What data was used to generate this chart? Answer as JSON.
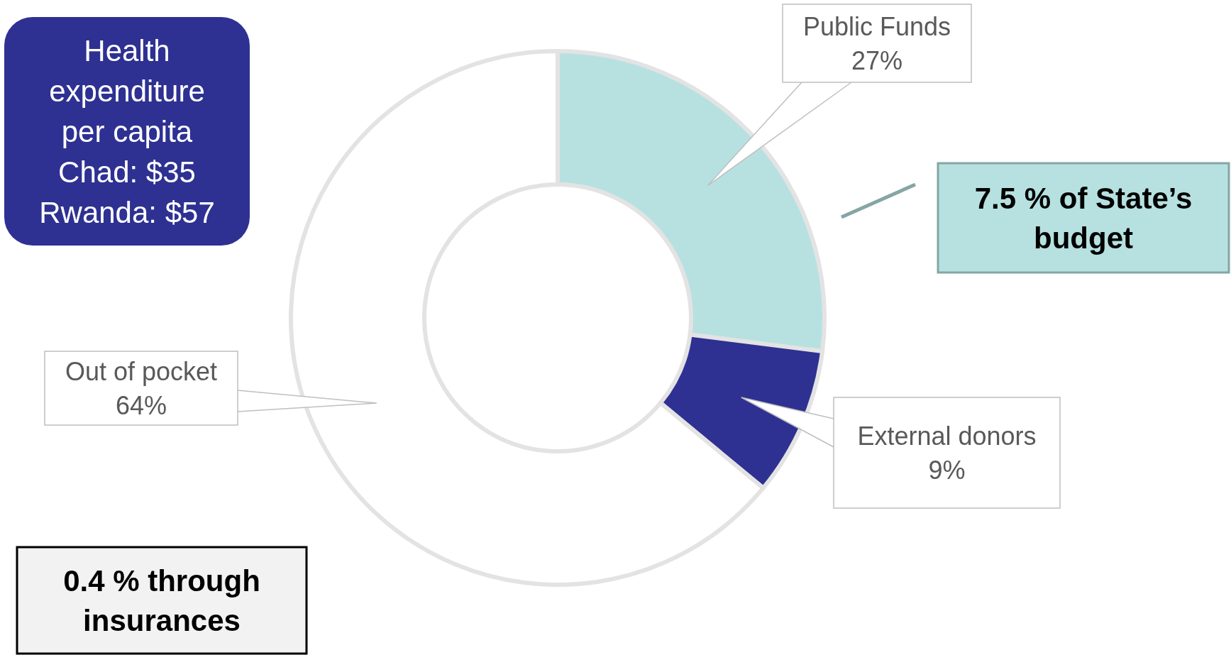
{
  "chart_data": {
    "type": "donut",
    "categories": [
      "Public Funds",
      "External donors",
      "Out of pocket"
    ],
    "values": [
      27,
      9,
      64
    ],
    "colors": [
      "#b7e1e1",
      "#2e3192",
      "#ffffff"
    ],
    "value_labels": [
      "27%",
      "9%",
      "64%"
    ],
    "annotations": [
      "Health expenditure per capita Chad: $35 Rwanda: $57",
      "7.5 % of State’s budget",
      "0.4 % through insurances"
    ]
  }
}
